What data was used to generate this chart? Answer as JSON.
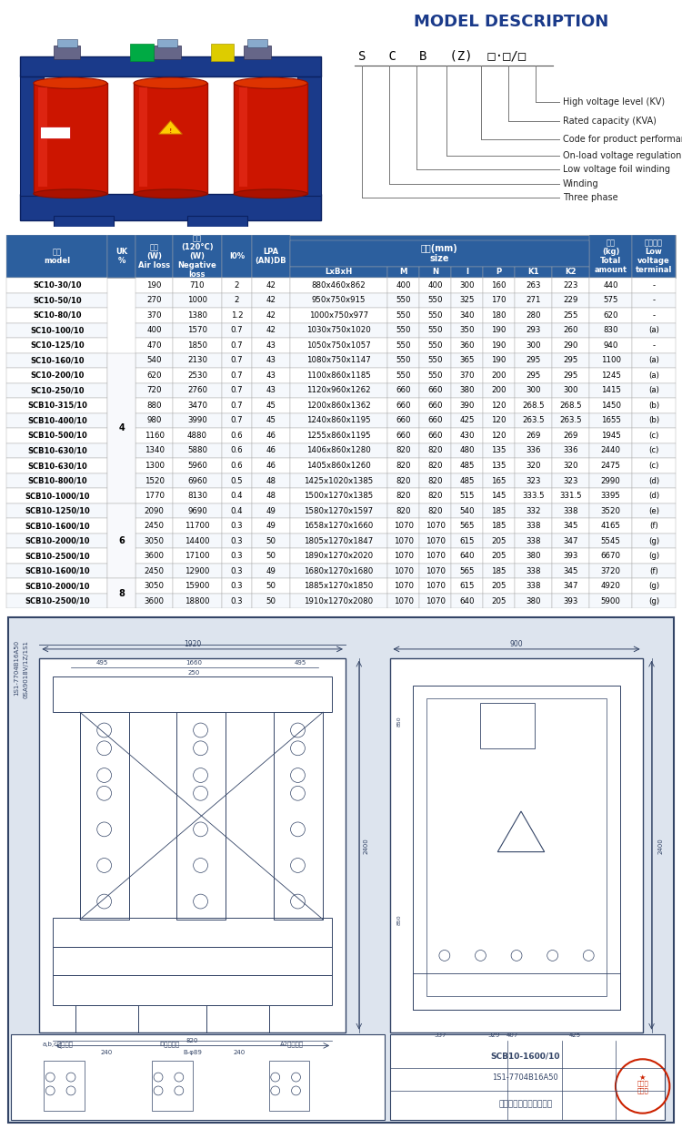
{
  "title_model": "MODEL DESCRIPTION",
  "model_labels": [
    "High voltage level (KV)",
    "Rated capacity (KVA)",
    "Code for product performance",
    "On-load voltage regulation",
    "Low voltage foil winding",
    "Winding",
    "Three phase"
  ],
  "table_data": [
    [
      "SC10-30/10",
      "",
      "190",
      "710",
      "2",
      "42",
      "880x460x862",
      "400",
      "400",
      "300",
      "160",
      "263",
      "223",
      "440",
      "-"
    ],
    [
      "SC10-50/10",
      "",
      "270",
      "1000",
      "2",
      "42",
      "950x750x915",
      "550",
      "550",
      "325",
      "170",
      "271",
      "229",
      "575",
      "-"
    ],
    [
      "SC10-80/10",
      "",
      "370",
      "1380",
      "1.2",
      "42",
      "1000x750x977",
      "550",
      "550",
      "340",
      "180",
      "280",
      "255",
      "620",
      "-"
    ],
    [
      "SC10-100/10",
      "",
      "400",
      "1570",
      "0.7",
      "42",
      "1030x750x1020",
      "550",
      "550",
      "350",
      "190",
      "293",
      "260",
      "830",
      "(a)"
    ],
    [
      "SC10-125/10",
      "",
      "470",
      "1850",
      "0.7",
      "43",
      "1050x750x1057",
      "550",
      "550",
      "360",
      "190",
      "300",
      "290",
      "940",
      "-"
    ],
    [
      "SC10-160/10",
      "4",
      "540",
      "2130",
      "0.7",
      "43",
      "1080x750x1147",
      "550",
      "550",
      "365",
      "190",
      "295",
      "295",
      "1100",
      "(a)"
    ],
    [
      "SC10-200/10",
      "",
      "620",
      "2530",
      "0.7",
      "43",
      "1100x860x1185",
      "550",
      "550",
      "370",
      "200",
      "295",
      "295",
      "1245",
      "(a)"
    ],
    [
      "SC10-250/10",
      "",
      "720",
      "2760",
      "0.7",
      "43",
      "1120x960x1262",
      "660",
      "660",
      "380",
      "200",
      "300",
      "300",
      "1415",
      "(a)"
    ],
    [
      "SCB10-315/10",
      "",
      "880",
      "3470",
      "0.7",
      "45",
      "1200x860x1362",
      "660",
      "660",
      "390",
      "120",
      "268.5",
      "268.5",
      "1450",
      "(b)"
    ],
    [
      "SCB10-400/10",
      "",
      "980",
      "3990",
      "0.7",
      "45",
      "1240x860x1195",
      "660",
      "660",
      "425",
      "120",
      "263.5",
      "263.5",
      "1655",
      "(b)"
    ],
    [
      "SCB10-500/10",
      "",
      "1160",
      "4880",
      "0.6",
      "46",
      "1255x860x1195",
      "660",
      "660",
      "430",
      "120",
      "269",
      "269",
      "1945",
      "(c)"
    ],
    [
      "SCB10-630/10",
      "",
      "1340",
      "5880",
      "0.6",
      "46",
      "1406x860x1280",
      "820",
      "820",
      "480",
      "135",
      "336",
      "336",
      "2440",
      "(c)"
    ],
    [
      "SCB10-630/10",
      "",
      "1300",
      "5960",
      "0.6",
      "46",
      "1405x860x1260",
      "820",
      "820",
      "485",
      "135",
      "320",
      "320",
      "2475",
      "(c)"
    ],
    [
      "SCB10-800/10",
      "",
      "1520",
      "6960",
      "0.5",
      "48",
      "1425x1020x1385",
      "820",
      "820",
      "485",
      "165",
      "323",
      "323",
      "2990",
      "(d)"
    ],
    [
      "SCB10-1000/10",
      "",
      "1770",
      "8130",
      "0.4",
      "48",
      "1500x1270x1385",
      "820",
      "820",
      "515",
      "145",
      "333.5",
      "331.5",
      "3395",
      "(d)"
    ],
    [
      "SCB10-1250/10",
      "6",
      "2090",
      "9690",
      "0.4",
      "49",
      "1580x1270x1597",
      "820",
      "820",
      "540",
      "185",
      "332",
      "338",
      "3520",
      "(e)"
    ],
    [
      "SCB10-1600/10",
      "",
      "2450",
      "11700",
      "0.3",
      "49",
      "1658x1270x1660",
      "1070",
      "1070",
      "565",
      "185",
      "338",
      "345",
      "4165",
      "(f)"
    ],
    [
      "SCB10-2000/10",
      "",
      "3050",
      "14400",
      "0.3",
      "50",
      "1805x1270x1847",
      "1070",
      "1070",
      "615",
      "205",
      "338",
      "347",
      "5545",
      "(g)"
    ],
    [
      "SCB10-2500/10",
      "",
      "3600",
      "17100",
      "0.3",
      "50",
      "1890x1270x2020",
      "1070",
      "1070",
      "640",
      "205",
      "380",
      "393",
      "6670",
      "(g)"
    ],
    [
      "SCB10-1600/10",
      "",
      "2450",
      "12900",
      "0.3",
      "49",
      "1680x1270x1680",
      "1070",
      "1070",
      "565",
      "185",
      "338",
      "345",
      "3720",
      "(f)"
    ],
    [
      "SCB10-2000/10",
      "8",
      "3050",
      "15900",
      "0.3",
      "50",
      "1885x1270x1850",
      "1070",
      "1070",
      "615",
      "205",
      "338",
      "347",
      "4920",
      "(g)"
    ],
    [
      "SCB10-2500/10",
      "",
      "3600",
      "18800",
      "0.3",
      "50",
      "1910x1270x2080",
      "1070",
      "1070",
      "640",
      "205",
      "380",
      "393",
      "5900",
      "(g)"
    ]
  ],
  "header_bg": "#2c5f9e",
  "header_fg": "#ffffff",
  "row_bg_even": "#ffffff",
  "row_bg_odd": "#f5f8fc",
  "drawing_bg": "#dde4ee",
  "line_color": "#334466"
}
